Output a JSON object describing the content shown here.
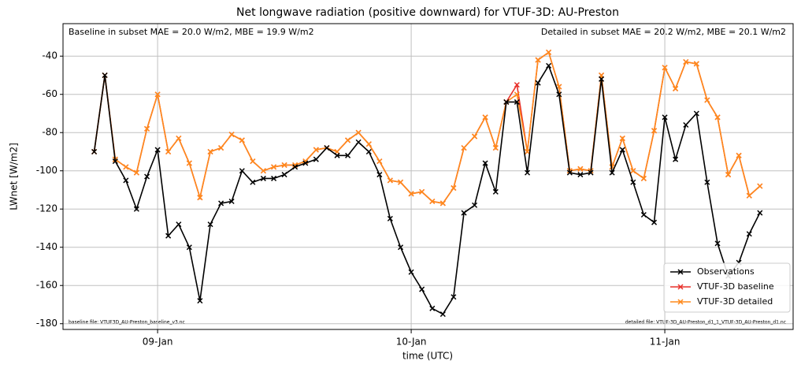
{
  "chart_data": {
    "type": "line",
    "title": "Net longwave radiation (positive downward) for VTUF-3D: AU-Preston",
    "xlabel": "time (UTC)",
    "ylabel": "LWnet [W/m2]",
    "annotations": {
      "top_left": "Baseline in subset MAE = 20.0 W/m2, MBE = 19.9 W/m2",
      "top_right": "Detailed in subset MAE = 20.2 W/m2, MBE = 20.1 W/m2",
      "bottom_left": "baseline file: VTUF3D_AU-Preston_baseline_v3.nc",
      "bottom_right": "detailed file: VTUF-3D_AU-Preston_d1_1_VTUF-3D_AU-Preston_d1.nc"
    },
    "x": [
      8.75,
      8.792,
      8.833,
      8.875,
      8.917,
      8.958,
      9.0,
      9.042,
      9.083,
      9.125,
      9.167,
      9.208,
      9.25,
      9.292,
      9.333,
      9.375,
      9.417,
      9.458,
      9.5,
      9.542,
      9.583,
      9.625,
      9.667,
      9.708,
      9.75,
      9.792,
      9.833,
      9.875,
      9.917,
      9.958,
      10.0,
      10.042,
      10.083,
      10.125,
      10.167,
      10.208,
      10.25,
      10.292,
      10.333,
      10.375,
      10.417,
      10.458,
      10.5,
      10.542,
      10.583,
      10.625,
      10.667,
      10.708,
      10.75,
      10.792,
      10.833,
      10.875,
      10.917,
      10.958,
      11.0,
      11.042,
      11.083,
      11.125,
      11.167,
      11.208,
      11.25,
      11.292,
      11.333,
      11.375
    ],
    "series": [
      {
        "name": "Observations",
        "color": "#000000",
        "values": [
          -90,
          -50,
          -95,
          -105,
          -120,
          -103,
          -89,
          -134,
          -128,
          -140,
          -168,
          -128,
          -117,
          -116,
          -100,
          -106,
          -104,
          -104,
          -102,
          -98,
          -96,
          -94,
          -88,
          -92,
          -92,
          -85,
          -90,
          -102,
          -125,
          -140,
          -153,
          -162,
          -172,
          -175,
          -166,
          -122,
          -118,
          -96,
          -111,
          -64,
          -64,
          -101,
          -54,
          -45,
          -60,
          -101,
          -102,
          -101,
          -52,
          -101,
          -89,
          -106,
          -123,
          -127,
          -72,
          -94,
          -76,
          -70,
          -106,
          -138,
          -155,
          -148,
          -133,
          -122
        ]
      },
      {
        "name": "VTUF-3D baseline",
        "color": "#e8302a",
        "values": [
          -90,
          -50,
          -94,
          -98,
          -101,
          -78,
          -60,
          -90,
          -83,
          -96,
          -114,
          -90,
          -88,
          -81,
          -84,
          -95,
          -100,
          -98,
          -97,
          -97,
          -95,
          -89,
          -88,
          -90,
          -84,
          -80,
          -86,
          -95,
          -105,
          -106,
          -112,
          -111,
          -116,
          -117,
          -109,
          -88,
          -82,
          -72,
          -88,
          -64,
          -55,
          -90,
          -42,
          -38,
          -56,
          -100,
          -99,
          -100,
          -50,
          -98,
          -83,
          -100,
          -104,
          -79,
          -46,
          -57,
          -43,
          -44,
          -63,
          -72,
          -102,
          -92,
          -113,
          -108
        ]
      },
      {
        "name": "VTUF-3D detailed",
        "color": "#ff8a1c",
        "values": [
          -90,
          -50,
          -94,
          -98,
          -101,
          -78,
          -60,
          -90,
          -83,
          -96,
          -114,
          -90,
          -88,
          -81,
          -84,
          -95,
          -100,
          -98,
          -97,
          -97,
          -95,
          -89,
          -88,
          -90,
          -84,
          -80,
          -86,
          -95,
          -105,
          -106,
          -112,
          -111,
          -116,
          -117,
          -109,
          -88,
          -82,
          -72,
          -88,
          -64,
          -60,
          -90,
          -42,
          -38,
          -56,
          -100,
          -99,
          -100,
          -50,
          -98,
          -83,
          -100,
          -104,
          -79,
          -46,
          -57,
          -43,
          -44,
          -63,
          -72,
          -102,
          -92,
          -113,
          -108
        ]
      }
    ],
    "xlim": [
      8.627,
      11.506
    ],
    "xticks": [
      {
        "value": 9,
        "label": "09-Jan"
      },
      {
        "value": 10,
        "label": "10-Jan"
      },
      {
        "value": 11,
        "label": "11-Jan"
      }
    ],
    "ylim": [
      -183,
      -23
    ],
    "yticks": [
      -180,
      -160,
      -140,
      -120,
      -100,
      -80,
      -60,
      -40
    ],
    "grid": true,
    "legend": "lower right"
  }
}
